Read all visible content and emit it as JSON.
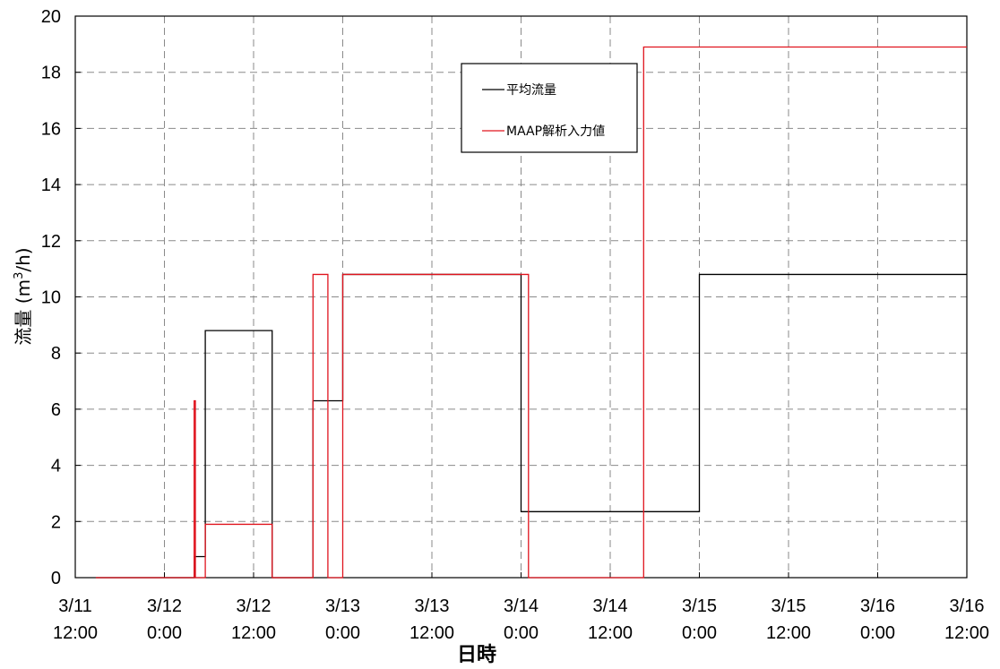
{
  "chart_data": {
    "type": "line",
    "xlabel": "日時",
    "ylabel_prefix": "流量 (m",
    "ylabel_sup": "3",
    "ylabel_suffix": "/h)",
    "ylim": [
      0,
      20
    ],
    "y_ticks": [
      "0",
      "2",
      "4",
      "6",
      "8",
      "10",
      "12",
      "14",
      "16",
      "18",
      "20"
    ],
    "xlim": [
      "2011-03-11 12:00",
      "2011-03-16 12:00"
    ],
    "x_ticks": [
      {
        "line1": "3/11",
        "line2": "12:00"
      },
      {
        "line1": "3/12",
        "line2": "0:00"
      },
      {
        "line1": "3/12",
        "line2": "12:00"
      },
      {
        "line1": "3/13",
        "line2": "0:00"
      },
      {
        "line1": "3/13",
        "line2": "12:00"
      },
      {
        "line1": "3/14",
        "line2": "0:00"
      },
      {
        "line1": "3/14",
        "line2": "12:00"
      },
      {
        "line1": "3/15",
        "line2": "0:00"
      },
      {
        "line1": "3/15",
        "line2": "12:00"
      },
      {
        "line1": "3/16",
        "line2": "0:00"
      },
      {
        "line1": "3/16",
        "line2": "12:00"
      }
    ],
    "grid": true,
    "legend_position": "top-center",
    "series": [
      {
        "name": "平均流量",
        "color": "#000000",
        "style": "step",
        "points": [
          [
            "2011-03-11 14:46",
            0
          ],
          [
            "2011-03-12 04:00",
            0
          ],
          [
            "2011-03-12 04:00",
            0.75
          ],
          [
            "2011-03-12 05:30",
            0.75
          ],
          [
            "2011-03-12 05:30",
            8.8
          ],
          [
            "2011-03-12 14:30",
            8.8
          ],
          [
            "2011-03-12 14:30",
            0
          ],
          [
            "2011-03-12 20:00",
            0
          ],
          [
            "2011-03-12 20:00",
            6.3
          ],
          [
            "2011-03-13 00:00",
            6.3
          ],
          [
            "2011-03-13 00:00",
            10.8
          ],
          [
            "2011-03-14 00:00",
            10.8
          ],
          [
            "2011-03-14 00:00",
            2.35
          ],
          [
            "2011-03-15 00:00",
            2.35
          ],
          [
            "2011-03-15 00:00",
            10.8
          ],
          [
            "2011-03-16 12:00",
            10.8
          ]
        ]
      },
      {
        "name": "MAAP解析入力値",
        "color": "#e0141e",
        "style": "step",
        "points": [
          [
            "2011-03-11 14:46",
            0
          ],
          [
            "2011-03-12 04:00",
            0
          ],
          [
            "2011-03-12 04:00",
            6.3
          ],
          [
            "2011-03-12 04:10",
            6.3
          ],
          [
            "2011-03-12 04:10",
            0
          ],
          [
            "2011-03-12 05:30",
            0
          ],
          [
            "2011-03-12 05:30",
            1.9
          ],
          [
            "2011-03-12 14:30",
            1.9
          ],
          [
            "2011-03-12 14:30",
            0
          ],
          [
            "2011-03-12 20:00",
            0
          ],
          [
            "2011-03-12 20:00",
            10.8
          ],
          [
            "2011-03-12 22:00",
            10.8
          ],
          [
            "2011-03-12 22:00",
            0
          ],
          [
            "2011-03-13 00:00",
            0
          ],
          [
            "2011-03-13 00:00",
            10.8
          ],
          [
            "2011-03-14 01:00",
            10.8
          ],
          [
            "2011-03-14 01:00",
            0
          ],
          [
            "2011-03-14 16:30",
            0
          ],
          [
            "2011-03-14 16:30",
            18.9
          ],
          [
            "2011-03-16 12:00",
            18.9
          ]
        ]
      }
    ]
  }
}
